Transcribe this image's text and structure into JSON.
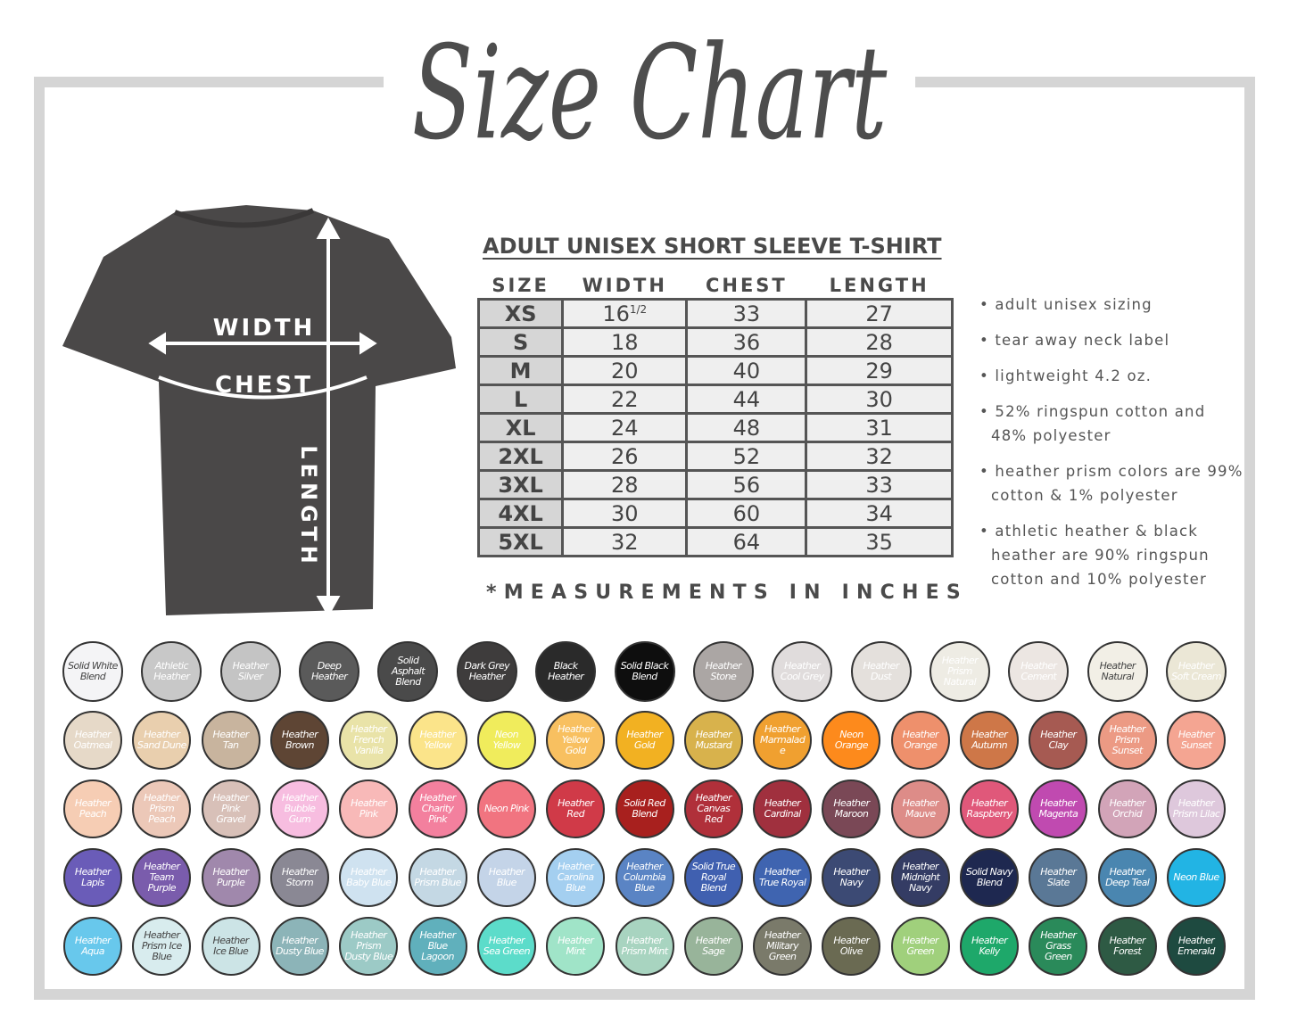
{
  "title": "Size Chart",
  "shirt": {
    "width_label": "WIDTH",
    "chest_label": "CHEST",
    "length_label": "LENGTH",
    "color": "#4a4848"
  },
  "table": {
    "title": "ADULT UNISEX SHORT SLEEVE T-SHIRT",
    "headers": [
      "SIZE",
      "WIDTH",
      "CHEST",
      "LENGTH"
    ],
    "rows": [
      {
        "size": "XS",
        "width": "16",
        "width_frac": "1/2",
        "chest": "33",
        "length": "27"
      },
      {
        "size": "S",
        "width": "18",
        "chest": "36",
        "length": "28"
      },
      {
        "size": "M",
        "width": "20",
        "chest": "40",
        "length": "29"
      },
      {
        "size": "L",
        "width": "22",
        "chest": "44",
        "length": "30"
      },
      {
        "size": "XL",
        "width": "24",
        "chest": "48",
        "length": "31"
      },
      {
        "size": "2XL",
        "width": "26",
        "chest": "52",
        "length": "32"
      },
      {
        "size": "3XL",
        "width": "28",
        "chest": "56",
        "length": "33"
      },
      {
        "size": "4XL",
        "width": "30",
        "chest": "60",
        "length": "34"
      },
      {
        "size": "5XL",
        "width": "32",
        "chest": "64",
        "length": "35"
      }
    ],
    "footnote": "*MEASUREMENTS IN INCHES"
  },
  "features": [
    "• adult unisex sizing",
    "• tear away neck label",
    "• lightweight 4.2 oz.",
    "• 52% ringspun cotton and 48% polyester",
    "• heather prism colors are 99% cotton & 1% polyester",
    "• athletic heather & black heather are 90% ringspun cotton and 10% polyester"
  ],
  "swatch_rows": [
    [
      {
        "name": "Solid White Blend",
        "color": "#f4f4f6",
        "text": "#444"
      },
      {
        "name": "Athletic Heather",
        "color": "#c8c8c8"
      },
      {
        "name": "Heather Silver",
        "color": "#c4c4c4"
      },
      {
        "name": "Deep Heather",
        "color": "#5a5a5a"
      },
      {
        "name": "Solid Asphalt Blend",
        "color": "#4a4a4a"
      },
      {
        "name": "Dark Grey Heather",
        "color": "#3e3c3c"
      },
      {
        "name": "Black Heather",
        "color": "#2a2a2a"
      },
      {
        "name": "Solid Black Blend",
        "color": "#0e0e0e"
      },
      {
        "name": "Heather Stone",
        "color": "#aba6a4"
      },
      {
        "name": "Heather Cool Grey",
        "color": "#e0dcdc"
      },
      {
        "name": "Heather Dust",
        "color": "#e4e0dc"
      },
      {
        "name": "Heather Prism Natural",
        "color": "#eeece4"
      },
      {
        "name": "Heather Cement",
        "color": "#ece6e2"
      },
      {
        "name": "Heather Natural",
        "color": "#f2efe6",
        "text": "#444"
      },
      {
        "name": "Heather Soft Cream",
        "color": "#ebe7d6"
      }
    ],
    [
      {
        "name": "Heather Oatmeal",
        "color": "#e6d9c8"
      },
      {
        "name": "Heather Sand Dune",
        "color": "#e9cfae"
      },
      {
        "name": "Heather Tan",
        "color": "#c8b49e"
      },
      {
        "name": "Heather Brown",
        "color": "#5e4534"
      },
      {
        "name": "Heather French Vanilla",
        "color": "#e9e3a8"
      },
      {
        "name": "Heather Yellow",
        "color": "#fbe48a"
      },
      {
        "name": "Neon Yellow",
        "color": "#f0ec5c"
      },
      {
        "name": "Heather Yellow Gold",
        "color": "#f8c060"
      },
      {
        "name": "Heather Gold",
        "color": "#f2b122"
      },
      {
        "name": "Heather Mustard",
        "color": "#d8b24c"
      },
      {
        "name": "Heather Marmalade",
        "color": "#f0a030"
      },
      {
        "name": "Neon Orange",
        "color": "#fd8a1c"
      },
      {
        "name": "Heather Orange",
        "color": "#ee906c"
      },
      {
        "name": "Heather Autumn",
        "color": "#ce7748"
      },
      {
        "name": "Heather Clay",
        "color": "#a65a52"
      },
      {
        "name": "Heather Prism Sunset",
        "color": "#ec9a84"
      },
      {
        "name": "Heather Sunset",
        "color": "#f4a592"
      }
    ],
    [
      {
        "name": "Heather Peach",
        "color": "#f6cdb4"
      },
      {
        "name": "Heather Prism Peach",
        "color": "#ecc8b8"
      },
      {
        "name": "Heather Pink Gravel",
        "color": "#d8c0b8"
      },
      {
        "name": "Heather Bubble Gum",
        "color": "#f7bde0"
      },
      {
        "name": "Heather Pink",
        "color": "#f8b9b8"
      },
      {
        "name": "Heather Charity Pink",
        "color": "#f3809e"
      },
      {
        "name": "Neon Pink",
        "color": "#f17480"
      },
      {
        "name": "Heather Red",
        "color": "#d03a48"
      },
      {
        "name": "Solid Red Blend",
        "color": "#a8201e"
      },
      {
        "name": "Heather Canvas Red",
        "color": "#b0303a"
      },
      {
        "name": "Heather Cardinal",
        "color": "#a0303e"
      },
      {
        "name": "Heather Maroon",
        "color": "#7a4856"
      },
      {
        "name": "Heather Mauve",
        "color": "#dd8c88"
      },
      {
        "name": "Heather Raspberry",
        "color": "#e0587a"
      },
      {
        "name": "Heather Magenta",
        "color": "#c04ab0"
      },
      {
        "name": "Heather Orchid",
        "color": "#d2a4b8"
      },
      {
        "name": "Heather Prism Lilac",
        "color": "#dec8dc"
      }
    ],
    [
      {
        "name": "Heather Lapis",
        "color": "#6a5cb8"
      },
      {
        "name": "Heather Team Purple",
        "color": "#7a5cac"
      },
      {
        "name": "Heather Purple",
        "color": "#a088ac"
      },
      {
        "name": "Heather Storm",
        "color": "#8a8894"
      },
      {
        "name": "Heather Baby Blue",
        "color": "#cfe2f0"
      },
      {
        "name": "Heather Prism Blue",
        "color": "#c4d8e4"
      },
      {
        "name": "Heather Blue",
        "color": "#c4d4e8"
      },
      {
        "name": "Heather Carolina Blue",
        "color": "#a4cff0"
      },
      {
        "name": "Heather Columbia Blue",
        "color": "#5a84c4"
      },
      {
        "name": "Solid True Royal Blend",
        "color": "#4060b0"
      },
      {
        "name": "Heather True Royal",
        "color": "#3f64b0"
      },
      {
        "name": "Heather Navy",
        "color": "#3c4a74"
      },
      {
        "name": "Heather Midnight Navy",
        "color": "#343c64"
      },
      {
        "name": "Solid Navy Blend",
        "color": "#1e2850"
      },
      {
        "name": "Heather Slate",
        "color": "#5a7896"
      },
      {
        "name": "Heather Deep Teal",
        "color": "#4a86b0"
      },
      {
        "name": "Neon Blue",
        "color": "#22b4e4"
      }
    ],
    [
      {
        "name": "Heather Aqua",
        "color": "#68c8ec"
      },
      {
        "name": "Heather Prism Ice Blue",
        "color": "#d8ecee",
        "text": "#444"
      },
      {
        "name": "Heather Ice Blue",
        "color": "#cce4e6",
        "text": "#444"
      },
      {
        "name": "Heather Dusty Blue",
        "color": "#8cb4b8"
      },
      {
        "name": "Heather Prism Dusty Blue",
        "color": "#9ccac6"
      },
      {
        "name": "Heather Blue Lagoon",
        "color": "#60b0bc"
      },
      {
        "name": "Heather Sea Green",
        "color": "#5cdcca"
      },
      {
        "name": "Heather Mint",
        "color": "#a0e4c8"
      },
      {
        "name": "Heather Prism Mint",
        "color": "#a8d4c0"
      },
      {
        "name": "Heather Sage",
        "color": "#98b49a"
      },
      {
        "name": "Heather Military Green",
        "color": "#7a7a6a"
      },
      {
        "name": "Heather Olive",
        "color": "#6a6a52"
      },
      {
        "name": "Heather Green",
        "color": "#a0d07c"
      },
      {
        "name": "Heather Kelly",
        "color": "#1ea86a"
      },
      {
        "name": "Heather Grass Green",
        "color": "#2a8a5a"
      },
      {
        "name": "Heather Forest",
        "color": "#2e5a44"
      },
      {
        "name": "Heather Emerald",
        "color": "#1e4a40"
      }
    ]
  ]
}
